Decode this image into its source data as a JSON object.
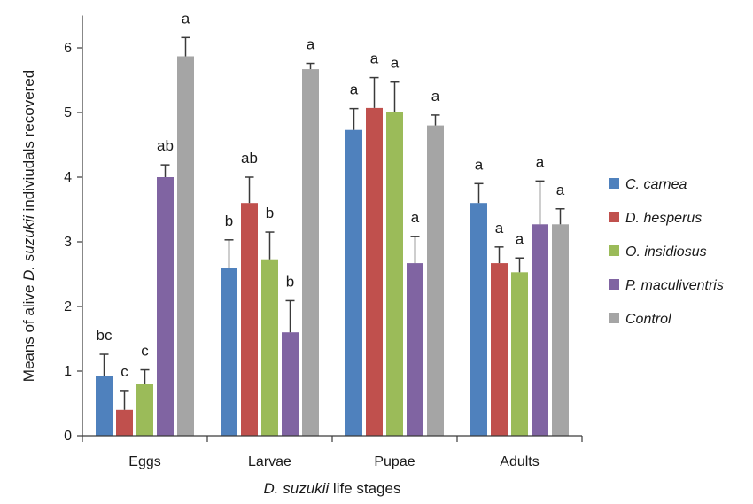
{
  "chart_data": {
    "type": "bar",
    "xlabel": {
      "italic": "D. suzukii",
      "rest": " life stages"
    },
    "ylabel": {
      "before": "Means of alive ",
      "italic": "D. suzukii",
      "after": " indiviudals recovered"
    },
    "ylim": [
      0,
      6.5
    ],
    "yticks": [
      0,
      1,
      2,
      3,
      4,
      5,
      6
    ],
    "grid": false,
    "legend_position": "right",
    "categories": [
      "Eggs",
      "Larvae",
      "Pupae",
      "Adults"
    ],
    "series": [
      {
        "name": "C. carnea",
        "color": "#4f81bd",
        "values": [
          0.93,
          2.6,
          4.73,
          3.6
        ],
        "errors": [
          0.33,
          0.43,
          0.33,
          0.3
        ],
        "letters": [
          "bc",
          "b",
          "a",
          "a"
        ]
      },
      {
        "name": "D. hesperus",
        "color": "#c0504d",
        "values": [
          0.4,
          3.6,
          5.07,
          2.67
        ],
        "errors": [
          0.3,
          0.4,
          0.47,
          0.25
        ],
        "letters": [
          "c",
          "ab",
          "a",
          "a"
        ]
      },
      {
        "name": "O. insidiosus",
        "color": "#9bbb59",
        "values": [
          0.8,
          2.73,
          5.0,
          2.53
        ],
        "errors": [
          0.22,
          0.42,
          0.47,
          0.22
        ],
        "letters": [
          "c",
          "b",
          "a",
          "a"
        ]
      },
      {
        "name": "P. maculiventris",
        "color": "#8064a2",
        "values": [
          4.0,
          1.6,
          2.67,
          3.27
        ],
        "errors": [
          0.19,
          0.49,
          0.41,
          0.67
        ],
        "letters": [
          "ab",
          "b",
          "a",
          "a"
        ]
      },
      {
        "name": "Control",
        "color": "#a5a5a5",
        "values": [
          5.87,
          5.67,
          4.8,
          3.27
        ],
        "errors": [
          0.29,
          0.09,
          0.16,
          0.24
        ],
        "letters": [
          "a",
          "a",
          "a",
          "a"
        ]
      }
    ]
  }
}
